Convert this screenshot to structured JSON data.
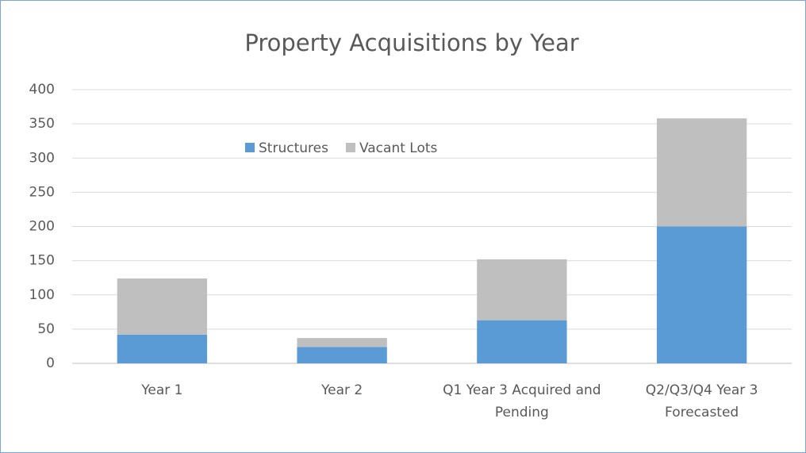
{
  "chart_data": {
    "type": "bar",
    "stacked": true,
    "title": "Property Acquisitions by Year",
    "categories": [
      "Year 1",
      "Year 2",
      "Q1 Year 3 Acquired and Pending",
      "Q2/Q3/Q4 Year 3 Forecasted"
    ],
    "series": [
      {
        "name": "Structures",
        "color": "#5b9bd5",
        "values": [
          42,
          24,
          63,
          200
        ]
      },
      {
        "name": "Vacant Lots",
        "color": "#bfbfbf",
        "values": [
          82,
          13,
          89,
          158
        ]
      }
    ],
    "ylim": [
      0,
      400
    ],
    "yticks": [
      0,
      50,
      100,
      150,
      200,
      250,
      300,
      350,
      400
    ],
    "grid": true,
    "legend": "top"
  }
}
